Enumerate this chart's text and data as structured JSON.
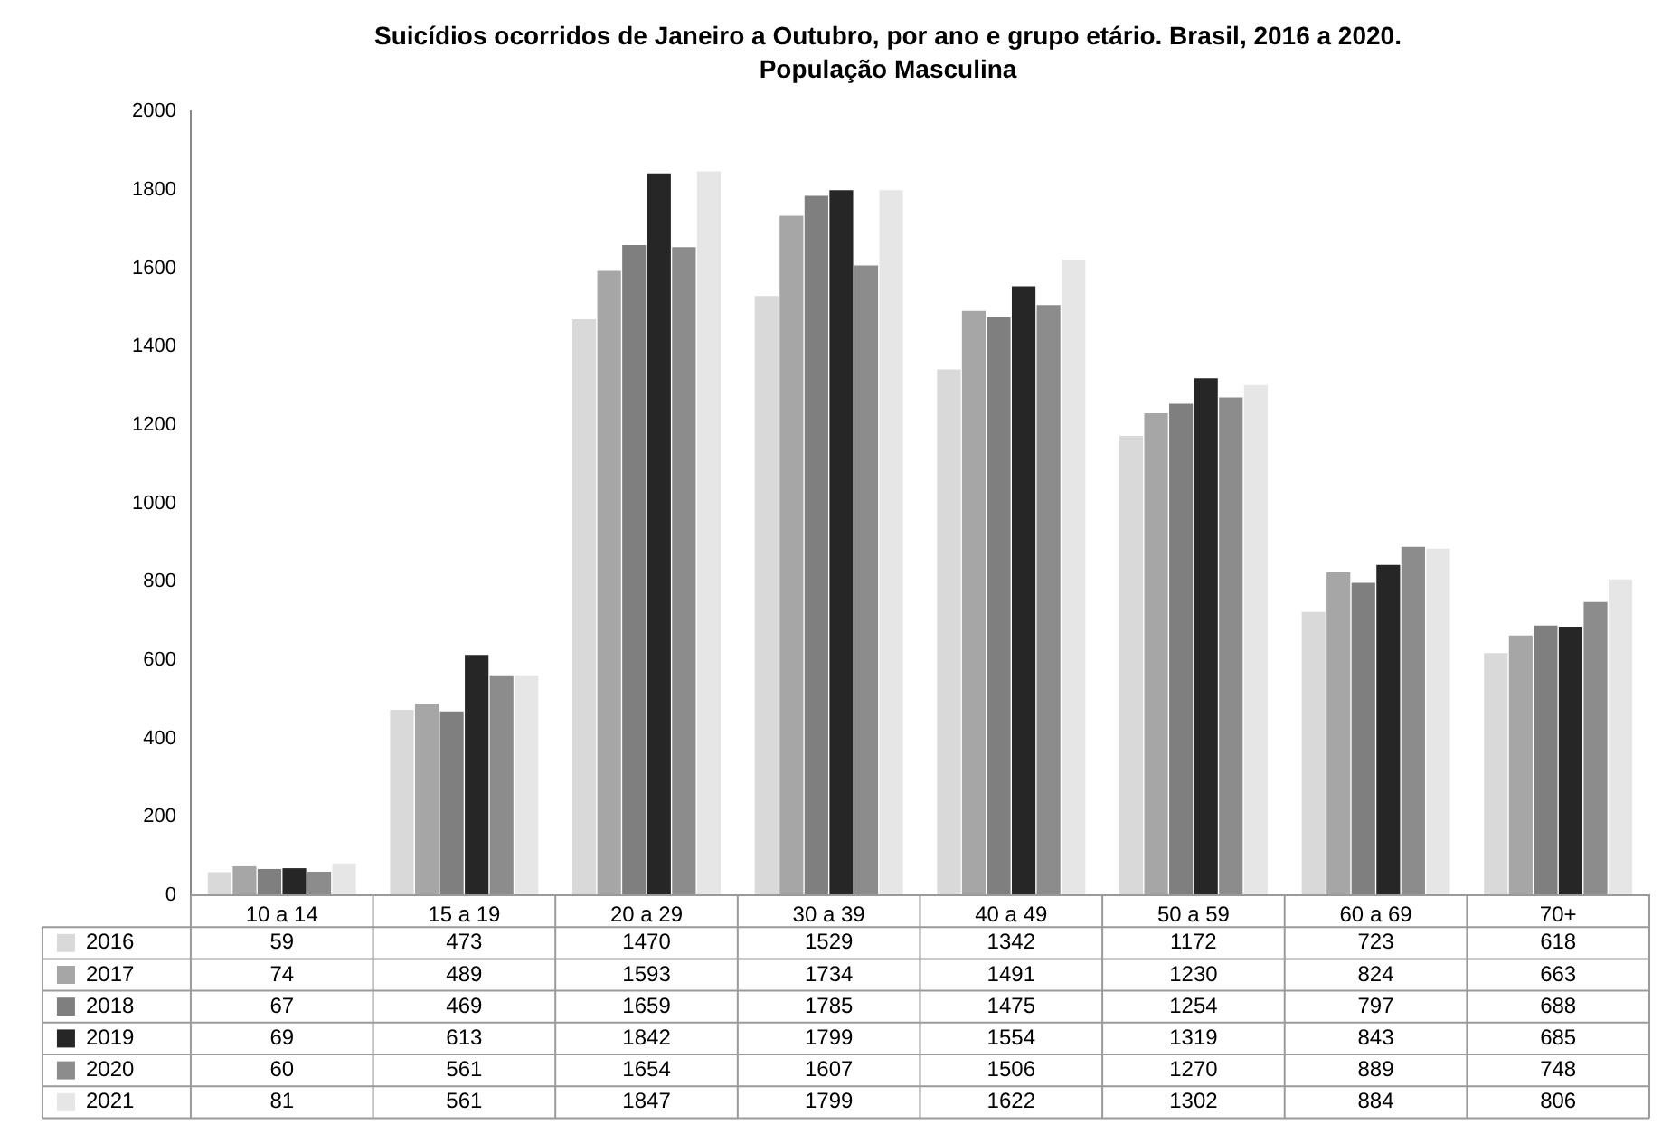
{
  "chart_data": {
    "type": "bar",
    "title": "Suicídios ocorridos de Janeiro a Outubro, por ano e grupo etário. Brasil, 2016 a 2020.",
    "subtitle": "População Masculina",
    "categories": [
      "10 a 14",
      "15 a 19",
      "20 a 29",
      "30 a 39",
      "40 a 49",
      "50 a 59",
      "60 a 69",
      "70+"
    ],
    "series": [
      {
        "name": "2016",
        "color": "#d9d9d9",
        "values": [
          59,
          473,
          1470,
          1529,
          1342,
          1172,
          723,
          618
        ]
      },
      {
        "name": "2017",
        "color": "#a6a6a6",
        "values": [
          74,
          489,
          1593,
          1734,
          1491,
          1230,
          824,
          663
        ]
      },
      {
        "name": "2018",
        "color": "#7f7f7f",
        "values": [
          67,
          469,
          1659,
          1785,
          1475,
          1254,
          797,
          688
        ]
      },
      {
        "name": "2019",
        "color": "#262626",
        "values": [
          69,
          613,
          1842,
          1799,
          1554,
          1319,
          843,
          685
        ]
      },
      {
        "name": "2020",
        "color": "#8c8c8c",
        "values": [
          60,
          561,
          1654,
          1607,
          1506,
          1270,
          889,
          748
        ]
      },
      {
        "name": "2021",
        "color": "#e6e6e6",
        "values": [
          81,
          561,
          1847,
          1799,
          1622,
          1302,
          884,
          806
        ]
      }
    ],
    "ylim": [
      0,
      2000
    ],
    "yticks": [
      0,
      200,
      400,
      600,
      800,
      1000,
      1200,
      1400,
      1600,
      1800,
      2000
    ],
    "grid": false,
    "legend": "bottom",
    "data_labels": true
  }
}
